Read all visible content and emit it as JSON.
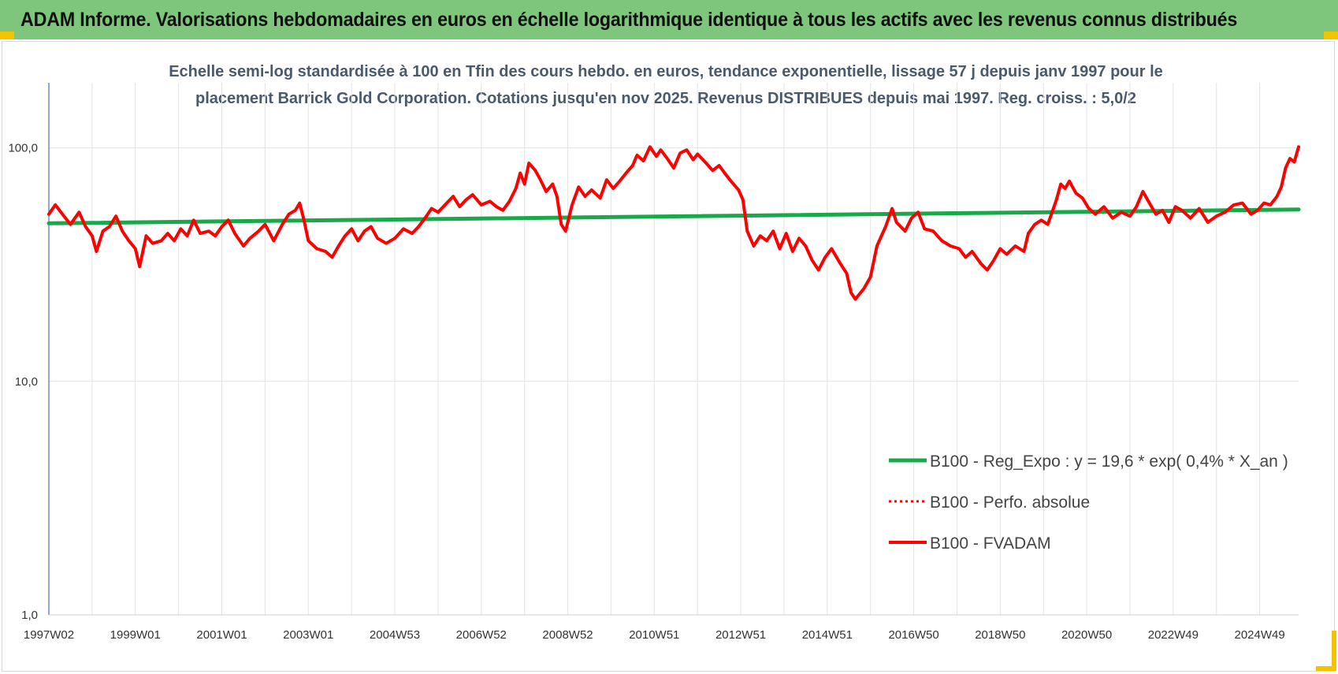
{
  "header": {
    "title": "ADAM Informe. Valorisations hebdomadaires en euros en échelle logarithmique identique à tous les actifs avec les revenus connus distribués"
  },
  "colors": {
    "banner": "#7dc67c",
    "trend": "#19a84a",
    "perf": "#ff0000",
    "fvadam": "#ff0000",
    "corner": "#f2c400"
  },
  "chart_data": {
    "type": "line",
    "title_lines": [
      "Echelle semi-log standardisée à 100 en Tfin des cours hebdo. en euros, tendance exponentielle, lissage 57 j depuis janv 1997 pour le",
      "placement Barrick Gold Corporation. Cotations jusqu'en nov 2025.  Revenus DISTRIBUES depuis mai 1997. Reg. croiss. : 5,0/2"
    ],
    "y_scale": "log",
    "ylim": [
      1,
      190
    ],
    "y_ticks": [
      "1,0",
      "10,0",
      "100,0"
    ],
    "y_tick_values": [
      1,
      10,
      100
    ],
    "xlim": [
      1997.0,
      2025.9
    ],
    "x_tick_labels": [
      "1997W02",
      "1999W01",
      "2001W01",
      "2003W01",
      "2004W53",
      "2006W52",
      "2008W52",
      "2010W51",
      "2012W51",
      "2014W51",
      "2016W50",
      "2018W50",
      "2020W50",
      "2022W49",
      "2024W49"
    ],
    "x_tick_values": [
      1997.0,
      1999.0,
      2001.0,
      2003.0,
      2005.0,
      2007.0,
      2009.0,
      2011.0,
      2013.0,
      2015.0,
      2017.0,
      2019.0,
      2021.0,
      2023.0,
      2025.0
    ],
    "grid": true,
    "legend_position": "bottom-right",
    "series": [
      {
        "name": "B100 - Reg_Expo : y = 19,6 * exp( 0,4% *  X_an )",
        "style": "solid-green",
        "points": [
          [
            1997.0,
            47.5
          ],
          [
            2025.9,
            54.5
          ]
        ]
      },
      {
        "name": "B100 - Perfo. absolue",
        "style": "dotted-red",
        "points": []
      },
      {
        "name": "B100 - FVADAM",
        "style": "solid-red",
        "points": [
          [
            1997.0,
            52
          ],
          [
            1997.15,
            57
          ],
          [
            1997.35,
            51
          ],
          [
            1997.5,
            47
          ],
          [
            1997.7,
            53
          ],
          [
            1997.85,
            46
          ],
          [
            1998.0,
            42
          ],
          [
            1998.1,
            36
          ],
          [
            1998.25,
            44
          ],
          [
            1998.4,
            46
          ],
          [
            1998.55,
            51
          ],
          [
            1998.7,
            44
          ],
          [
            1998.85,
            40
          ],
          [
            1999.0,
            37
          ],
          [
            1999.1,
            31
          ],
          [
            1999.25,
            42
          ],
          [
            1999.4,
            39
          ],
          [
            1999.6,
            40
          ],
          [
            1999.75,
            43
          ],
          [
            1999.9,
            40
          ],
          [
            2000.05,
            45
          ],
          [
            2000.2,
            42
          ],
          [
            2000.35,
            49
          ],
          [
            2000.5,
            43
          ],
          [
            2000.7,
            44
          ],
          [
            2000.85,
            42
          ],
          [
            2001.0,
            46
          ],
          [
            2001.15,
            49
          ],
          [
            2001.3,
            43
          ],
          [
            2001.5,
            38
          ],
          [
            2001.65,
            41
          ],
          [
            2001.85,
            44
          ],
          [
            2002.0,
            47
          ],
          [
            2002.2,
            40
          ],
          [
            2002.4,
            47
          ],
          [
            2002.55,
            52
          ],
          [
            2002.7,
            54
          ],
          [
            2002.8,
            58
          ],
          [
            2002.9,
            49
          ],
          [
            2003.0,
            40
          ],
          [
            2003.2,
            37
          ],
          [
            2003.4,
            36
          ],
          [
            2003.55,
            34
          ],
          [
            2003.7,
            38
          ],
          [
            2003.85,
            42
          ],
          [
            2004.0,
            45
          ],
          [
            2004.15,
            40
          ],
          [
            2004.3,
            44
          ],
          [
            2004.45,
            46
          ],
          [
            2004.6,
            41
          ],
          [
            2004.8,
            39
          ],
          [
            2005.0,
            41
          ],
          [
            2005.2,
            45
          ],
          [
            2005.4,
            43
          ],
          [
            2005.55,
            46
          ],
          [
            2005.7,
            50
          ],
          [
            2005.85,
            55
          ],
          [
            2006.0,
            53
          ],
          [
            2006.2,
            58
          ],
          [
            2006.35,
            62
          ],
          [
            2006.5,
            56
          ],
          [
            2006.65,
            60
          ],
          [
            2006.8,
            63
          ],
          [
            2007.0,
            57
          ],
          [
            2007.2,
            59
          ],
          [
            2007.35,
            56
          ],
          [
            2007.5,
            54
          ],
          [
            2007.65,
            59
          ],
          [
            2007.8,
            67
          ],
          [
            2007.9,
            78
          ],
          [
            2008.0,
            70
          ],
          [
            2008.1,
            86
          ],
          [
            2008.25,
            80
          ],
          [
            2008.35,
            74
          ],
          [
            2008.5,
            65
          ],
          [
            2008.65,
            70
          ],
          [
            2008.75,
            62
          ],
          [
            2008.85,
            47
          ],
          [
            2008.95,
            44
          ],
          [
            2009.1,
            57
          ],
          [
            2009.25,
            68
          ],
          [
            2009.4,
            62
          ],
          [
            2009.55,
            66
          ],
          [
            2009.75,
            61
          ],
          [
            2009.9,
            73
          ],
          [
            2010.05,
            67
          ],
          [
            2010.2,
            72
          ],
          [
            2010.35,
            78
          ],
          [
            2010.5,
            84
          ],
          [
            2010.6,
            93
          ],
          [
            2010.75,
            88
          ],
          [
            2010.9,
            101
          ],
          [
            2011.05,
            92
          ],
          [
            2011.15,
            98
          ],
          [
            2011.3,
            90
          ],
          [
            2011.45,
            82
          ],
          [
            2011.6,
            95
          ],
          [
            2011.75,
            98
          ],
          [
            2011.9,
            89
          ],
          [
            2012.0,
            94
          ],
          [
            2012.2,
            86
          ],
          [
            2012.35,
            80
          ],
          [
            2012.5,
            84
          ],
          [
            2012.65,
            77
          ],
          [
            2012.8,
            71
          ],
          [
            2012.95,
            66
          ],
          [
            2013.05,
            60
          ],
          [
            2013.15,
            44
          ],
          [
            2013.3,
            38
          ],
          [
            2013.45,
            42
          ],
          [
            2013.6,
            40
          ],
          [
            2013.75,
            44
          ],
          [
            2013.9,
            37
          ],
          [
            2014.05,
            43
          ],
          [
            2014.2,
            36
          ],
          [
            2014.35,
            41
          ],
          [
            2014.5,
            38
          ],
          [
            2014.65,
            33
          ],
          [
            2014.8,
            30
          ],
          [
            2014.95,
            34
          ],
          [
            2015.1,
            37
          ],
          [
            2015.3,
            32
          ],
          [
            2015.45,
            29
          ],
          [
            2015.55,
            24
          ],
          [
            2015.65,
            22.5
          ],
          [
            2015.85,
            25
          ],
          [
            2016.0,
            28
          ],
          [
            2016.15,
            38
          ],
          [
            2016.35,
            46
          ],
          [
            2016.5,
            55
          ],
          [
            2016.6,
            48
          ],
          [
            2016.8,
            44
          ],
          [
            2016.95,
            50
          ],
          [
            2017.1,
            53
          ],
          [
            2017.25,
            45
          ],
          [
            2017.45,
            44
          ],
          [
            2017.65,
            40
          ],
          [
            2017.85,
            38
          ],
          [
            2018.05,
            37
          ],
          [
            2018.2,
            34
          ],
          [
            2018.35,
            36
          ],
          [
            2018.55,
            32
          ],
          [
            2018.7,
            30
          ],
          [
            2018.85,
            33
          ],
          [
            2019.0,
            37
          ],
          [
            2019.15,
            35
          ],
          [
            2019.35,
            38
          ],
          [
            2019.55,
            36
          ],
          [
            2019.65,
            43
          ],
          [
            2019.8,
            47
          ],
          [
            2019.95,
            49
          ],
          [
            2020.1,
            47
          ],
          [
            2020.2,
            53
          ],
          [
            2020.3,
            60
          ],
          [
            2020.4,
            70
          ],
          [
            2020.5,
            67
          ],
          [
            2020.6,
            72
          ],
          [
            2020.75,
            64
          ],
          [
            2020.9,
            61
          ],
          [
            2021.05,
            55
          ],
          [
            2021.2,
            52
          ],
          [
            2021.4,
            56
          ],
          [
            2021.6,
            50
          ],
          [
            2021.8,
            53
          ],
          [
            2022.0,
            51
          ],
          [
            2022.15,
            56
          ],
          [
            2022.3,
            65
          ],
          [
            2022.45,
            58
          ],
          [
            2022.6,
            52
          ],
          [
            2022.75,
            54
          ],
          [
            2022.9,
            48
          ],
          [
            2023.05,
            56
          ],
          [
            2023.2,
            54
          ],
          [
            2023.4,
            50
          ],
          [
            2023.6,
            55
          ],
          [
            2023.8,
            48
          ],
          [
            2024.0,
            51
          ],
          [
            2024.2,
            53
          ],
          [
            2024.4,
            57
          ],
          [
            2024.6,
            58
          ],
          [
            2024.8,
            52
          ],
          [
            2024.95,
            54
          ],
          [
            2025.1,
            58
          ],
          [
            2025.25,
            57
          ],
          [
            2025.4,
            62
          ],
          [
            2025.5,
            68
          ],
          [
            2025.6,
            82
          ],
          [
            2025.7,
            90
          ],
          [
            2025.8,
            87
          ],
          [
            2025.9,
            101
          ]
        ]
      }
    ]
  }
}
